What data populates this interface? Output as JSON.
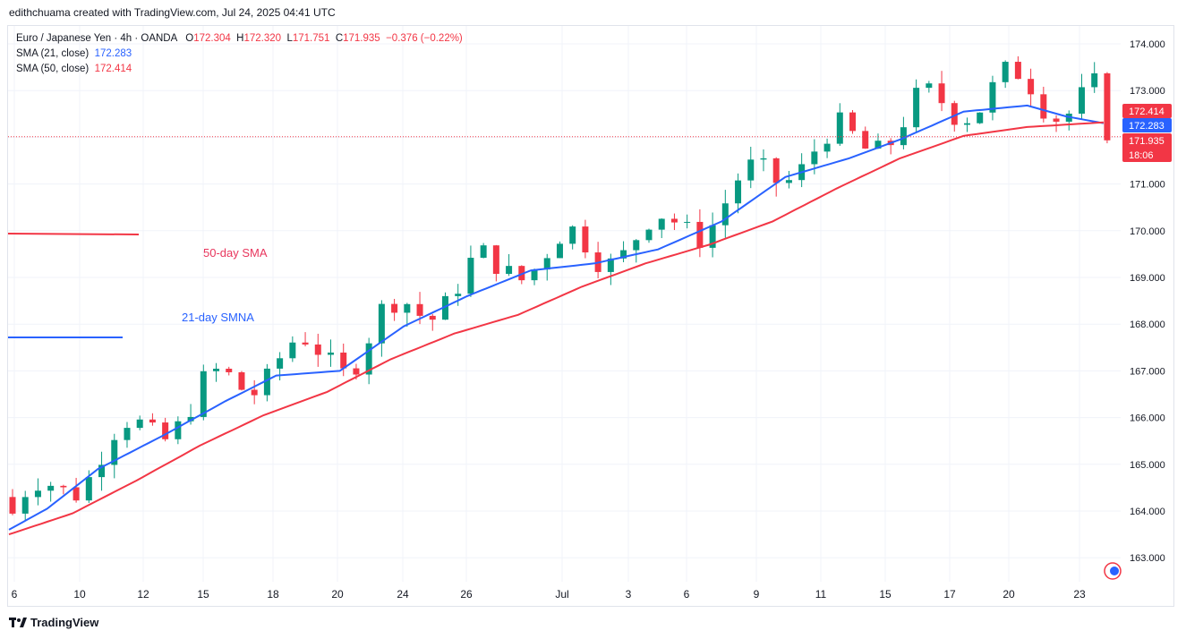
{
  "header": {
    "credit": "edithchuama created with TradingView.com, Jul 24, 2025 04:41 UTC"
  },
  "legend": {
    "symbol": "Euro / Japanese Yen · 4h · OANDA",
    "o_label": "O",
    "o": "172.304",
    "h_label": "H",
    "h": "172.320",
    "l_label": "L",
    "l": "171.751",
    "c_label": "C",
    "c": "171.935",
    "change": "−0.376 (−0.22%)",
    "sma21_label": "SMA (21, close)",
    "sma21_value": "172.283",
    "sma50_label": "SMA (50, close)",
    "sma50_value": "172.414"
  },
  "annotations": {
    "sma50": "50-day SMA",
    "sma21": "21-day SMNA"
  },
  "price_tags": {
    "sma50": "172.414",
    "sma21": "172.283",
    "last": "171.935",
    "countdown": "18:06"
  },
  "footer": {
    "brand": "TradingView",
    "logo": "tradingview-logo-icon"
  },
  "colors": {
    "up": "#089981",
    "down": "#f23645",
    "sma21": "#2962ff",
    "sma50": "#f23645",
    "grid": "#f0f3fa"
  },
  "chart_data": {
    "type": "candlestick",
    "ylim": [
      162.5,
      174.5
    ],
    "y_ticks": [
      "163.000",
      "164.000",
      "165.000",
      "166.000",
      "167.000",
      "168.000",
      "169.000",
      "170.000",
      "171.000",
      "172.000",
      "173.000",
      "174.000"
    ],
    "x_ticks": [
      "6",
      "10",
      "12",
      "15",
      "18",
      "20",
      "24",
      "26",
      "Jul",
      "3",
      "6",
      "9",
      "11",
      "15",
      "17",
      "20",
      "23"
    ],
    "last_price": 171.935,
    "series": [
      {
        "name": "SMA (21, close)",
        "points": [
          [
            0,
            163.6
          ],
          [
            3,
            164.05
          ],
          [
            7,
            164.9
          ],
          [
            12,
            165.6
          ],
          [
            17,
            166.35
          ],
          [
            21,
            166.9
          ],
          [
            26,
            167.0
          ],
          [
            31,
            167.95
          ],
          [
            36,
            168.6
          ],
          [
            41,
            169.15
          ],
          [
            46,
            169.3
          ],
          [
            51,
            169.6
          ],
          [
            56,
            170.2
          ],
          [
            61,
            171.15
          ],
          [
            66,
            171.55
          ],
          [
            70,
            171.95
          ],
          [
            75,
            172.55
          ],
          [
            80,
            172.68
          ],
          [
            83,
            172.45
          ],
          [
            86,
            172.3
          ]
        ]
      },
      {
        "name": "SMA (50, close)",
        "points": [
          [
            0,
            163.5
          ],
          [
            5,
            163.95
          ],
          [
            10,
            164.65
          ],
          [
            15,
            165.4
          ],
          [
            20,
            166.05
          ],
          [
            25,
            166.55
          ],
          [
            30,
            167.25
          ],
          [
            35,
            167.8
          ],
          [
            40,
            168.2
          ],
          [
            45,
            168.8
          ],
          [
            50,
            169.3
          ],
          [
            55,
            169.7
          ],
          [
            60,
            170.2
          ],
          [
            65,
            170.9
          ],
          [
            70,
            171.55
          ],
          [
            75,
            172.03
          ],
          [
            80,
            172.22
          ],
          [
            86,
            172.32
          ]
        ]
      }
    ]
  }
}
